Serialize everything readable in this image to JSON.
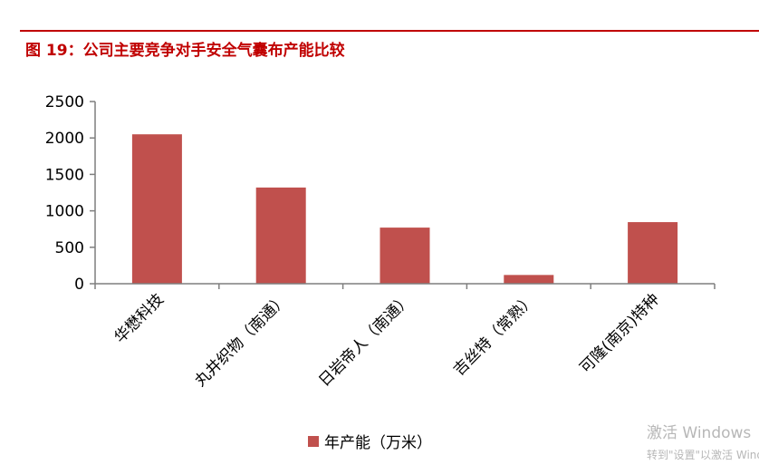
{
  "figure": {
    "title": "图 19：公司主要竞争对手安全气囊布产能比较"
  },
  "colors": {
    "accent": "#c00000",
    "bar": "#c0504d",
    "axis": "#7f7f7f"
  },
  "chart_data": {
    "type": "bar",
    "title": "",
    "xlabel": "",
    "ylabel": "",
    "categories": [
      "华懋科技",
      "丸井织物（南通）",
      "日岩帝人（南通）",
      "吉丝特（常熟）",
      "可隆(南京)特种"
    ],
    "series": [
      {
        "name": "年产能（万米）",
        "values": [
          2050,
          1320,
          770,
          120,
          845
        ]
      }
    ],
    "ylim": [
      0,
      2500
    ],
    "yticks": [
      "0",
      "500",
      "1000",
      "1500",
      "2000",
      "2500"
    ],
    "ytick_values": [
      0,
      500,
      1000,
      1500,
      2000,
      2500
    ],
    "grid": false,
    "legend": "bottom"
  },
  "watermark": {
    "line1": "激活 Windows",
    "line2": "转到\"设置\"以激活 Windows。"
  }
}
